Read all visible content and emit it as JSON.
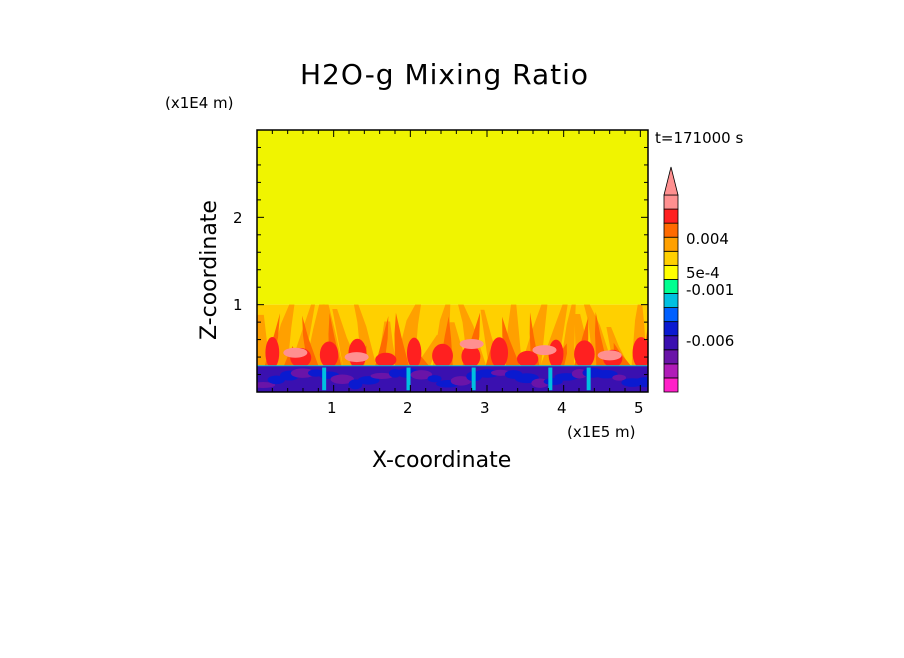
{
  "chart_data": {
    "type": "heatmap",
    "title": "H2O-g Mixing Ratio",
    "xlabel": "X-coordinate",
    "ylabel": "Z-coordinate",
    "x_unit": "(x1E5 m)",
    "y_unit": "(x1E4 m)",
    "timestamp": "t=171000 s",
    "xlim": [
      0,
      5.1
    ],
    "ylim": [
      0,
      3
    ],
    "x_ticks": [
      "1",
      "2",
      "3",
      "4",
      "5"
    ],
    "y_ticks": [
      "1",
      "2"
    ],
    "colorbar": {
      "labels": [
        "0.004",
        "5e-4",
        "-0.001",
        "-0.006"
      ],
      "colors": [
        "#ff20c8",
        "#b01cb8",
        "#6a14a8",
        "#3a10b0",
        "#0a1ad0",
        "#0060ff",
        "#00c0e0",
        "#00ff90",
        "#ffff00",
        "#ffd000",
        "#ffa000",
        "#ff6a00",
        "#ff2020",
        "#ff9090"
      ]
    },
    "regions": [
      {
        "name": "upper layer",
        "z_range": [
          1.0,
          3.0
        ],
        "level": "near 0 (yellow)"
      },
      {
        "name": "plume layer",
        "z_range": [
          0.3,
          1.0
        ],
        "level": "positive (orange/red)"
      },
      {
        "name": "bottom layer",
        "z_range": [
          0,
          0.3
        ],
        "level": "negative (blue/purple)"
      }
    ]
  }
}
